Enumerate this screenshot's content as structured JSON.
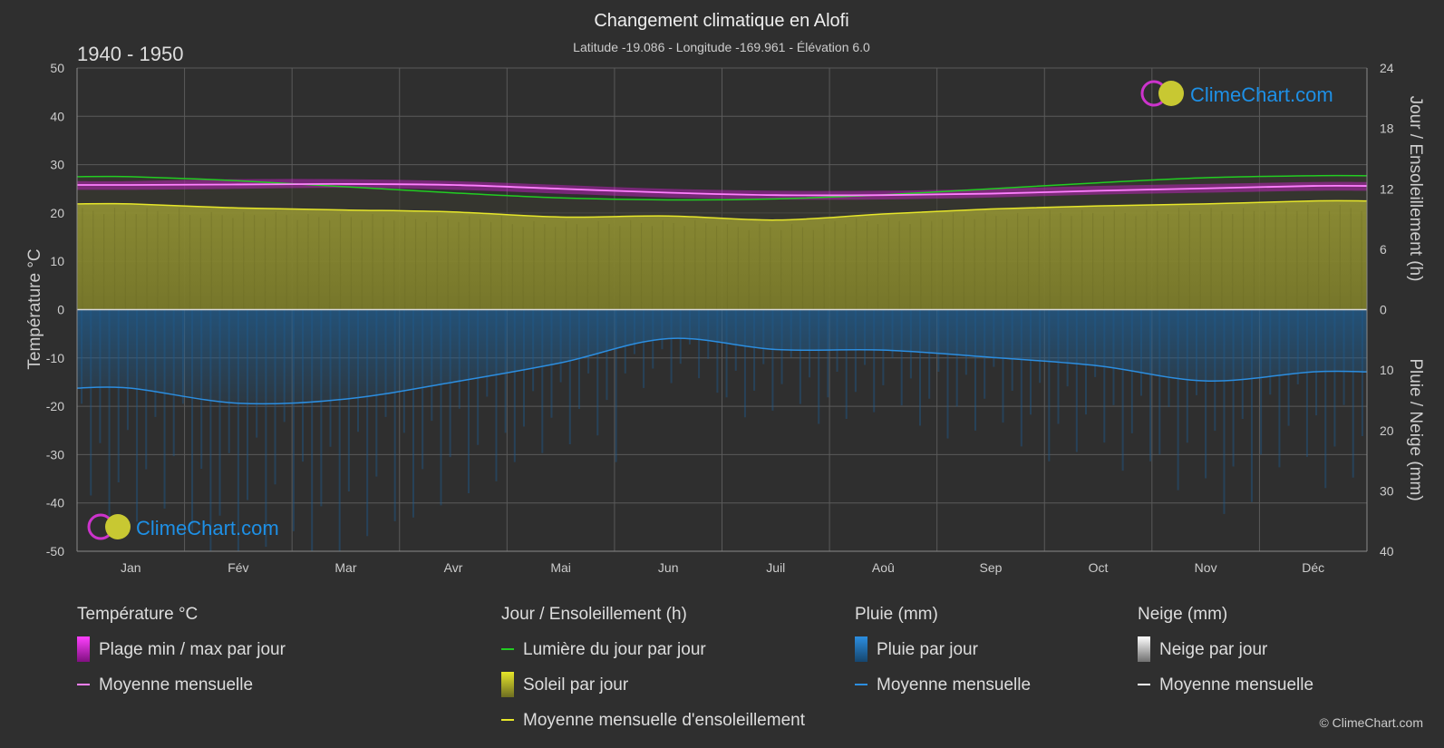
{
  "header": {
    "title": "Changement climatique en Alofi",
    "subtitle": "Latitude -19.086 - Longitude -169.961 - Élévation 6.0",
    "period": "1940 - 1950"
  },
  "logo": {
    "text": "ClimeChart.com"
  },
  "copyright": "© ClimeChart.com",
  "colors": {
    "background": "#2f2f2f",
    "grid": "#5a5a5a",
    "temp_band": "#d020d0",
    "temp_mean": "#ff80ff",
    "daylight": "#22cc22",
    "sunshine_fill": "#8c8c2e",
    "sunshine_mean": "#e6e62a",
    "rain_fill": "#1f5a8c",
    "rain_mean": "#2c8ee0",
    "snow_mean": "#ffffff"
  },
  "chart_data": {
    "type": "line",
    "categories": [
      "Jan",
      "Fév",
      "Mar",
      "Avr",
      "Mai",
      "Jun",
      "Juil",
      "Aoû",
      "Sep",
      "Oct",
      "Nov",
      "Déc"
    ],
    "axes": {
      "left": {
        "label": "Température °C",
        "range": [
          -50,
          50
        ],
        "ticks": [
          "50",
          "40",
          "30",
          "20",
          "10",
          "0",
          "-10",
          "-20",
          "-30",
          "-40",
          "-50"
        ]
      },
      "right_top": {
        "label": "Jour / Ensoleillement (h)",
        "range": [
          0,
          24
        ],
        "ticks": [
          "24",
          "18",
          "12",
          "6",
          "0"
        ]
      },
      "right_bottom": {
        "label": "Pluie / Neige (mm)",
        "range": [
          0,
          40
        ],
        "ticks": [
          "0",
          "10",
          "20",
          "30",
          "40"
        ]
      }
    },
    "grid": true,
    "series": [
      {
        "name": "Plage min / max par jour",
        "axis": "left",
        "min": [
          24.8,
          25.0,
          25.2,
          24.8,
          24.0,
          23.2,
          22.8,
          22.8,
          23.2,
          23.8,
          24.2,
          24.6
        ],
        "max": [
          26.6,
          27.0,
          27.0,
          26.6,
          25.8,
          25.0,
          24.6,
          24.6,
          25.0,
          25.6,
          26.0,
          26.4
        ]
      },
      {
        "name": "Moyenne mensuelle",
        "axis": "left",
        "values": [
          25.8,
          25.9,
          26.0,
          25.8,
          25.0,
          24.2,
          23.7,
          23.7,
          24.0,
          24.6,
          25.1,
          25.6
        ]
      },
      {
        "name": "Lumière du jour par jour",
        "axis": "right_top",
        "values": [
          13.2,
          12.8,
          12.2,
          11.6,
          11.1,
          10.9,
          11.0,
          11.4,
          12.0,
          12.6,
          13.1,
          13.3
        ]
      },
      {
        "name": "Soleil par jour",
        "axis": "right_top",
        "values": [
          10.5,
          10.1,
          9.9,
          9.7,
          9.2,
          9.3,
          8.9,
          9.5,
          10.0,
          10.3,
          10.5,
          10.8
        ]
      },
      {
        "name": "Moyenne mensuelle d'ensoleillement",
        "axis": "right_top",
        "values": [
          10.5,
          10.1,
          9.9,
          9.7,
          9.2,
          9.3,
          8.9,
          9.5,
          10.0,
          10.3,
          10.5,
          10.8
        ]
      },
      {
        "name": "Pluie par jour",
        "axis": "right_bottom",
        "values": [
          13.0,
          15.5,
          14.8,
          12.0,
          8.8,
          4.8,
          6.6,
          6.7,
          7.9,
          9.3,
          11.8,
          10.3
        ]
      },
      {
        "name": "Moyenne mensuelle",
        "axis": "right_bottom",
        "values": [
          13.0,
          15.5,
          14.8,
          12.0,
          8.8,
          4.8,
          6.6,
          6.7,
          7.9,
          9.3,
          11.8,
          10.3
        ]
      }
    ]
  },
  "legend": {
    "groups": [
      {
        "heading": "Température °C",
        "items": [
          {
            "label": "Plage min / max par jour",
            "kind": "swatch",
            "color": "#d020d0"
          },
          {
            "label": "Moyenne mensuelle",
            "kind": "line",
            "color": "#ff80ff"
          }
        ]
      },
      {
        "heading": "Jour / Ensoleillement (h)",
        "items": [
          {
            "label": "Lumière du jour par jour",
            "kind": "line",
            "color": "#22cc22"
          },
          {
            "label": "Soleil par jour",
            "kind": "swatch",
            "color": "#c8c832"
          },
          {
            "label": "Moyenne mensuelle d'ensoleillement",
            "kind": "line",
            "color": "#e6e62a"
          }
        ]
      },
      {
        "heading": "Pluie (mm)",
        "items": [
          {
            "label": "Pluie par jour",
            "kind": "swatch",
            "color": "#2c8ee0"
          },
          {
            "label": "Moyenne mensuelle",
            "kind": "line",
            "color": "#2c8ee0"
          }
        ]
      },
      {
        "heading": "Neige (mm)",
        "items": [
          {
            "label": "Neige par jour",
            "kind": "swatch",
            "color": "#dddddd"
          },
          {
            "label": "Moyenne mensuelle",
            "kind": "line",
            "color": "#ffffff"
          }
        ]
      }
    ]
  }
}
